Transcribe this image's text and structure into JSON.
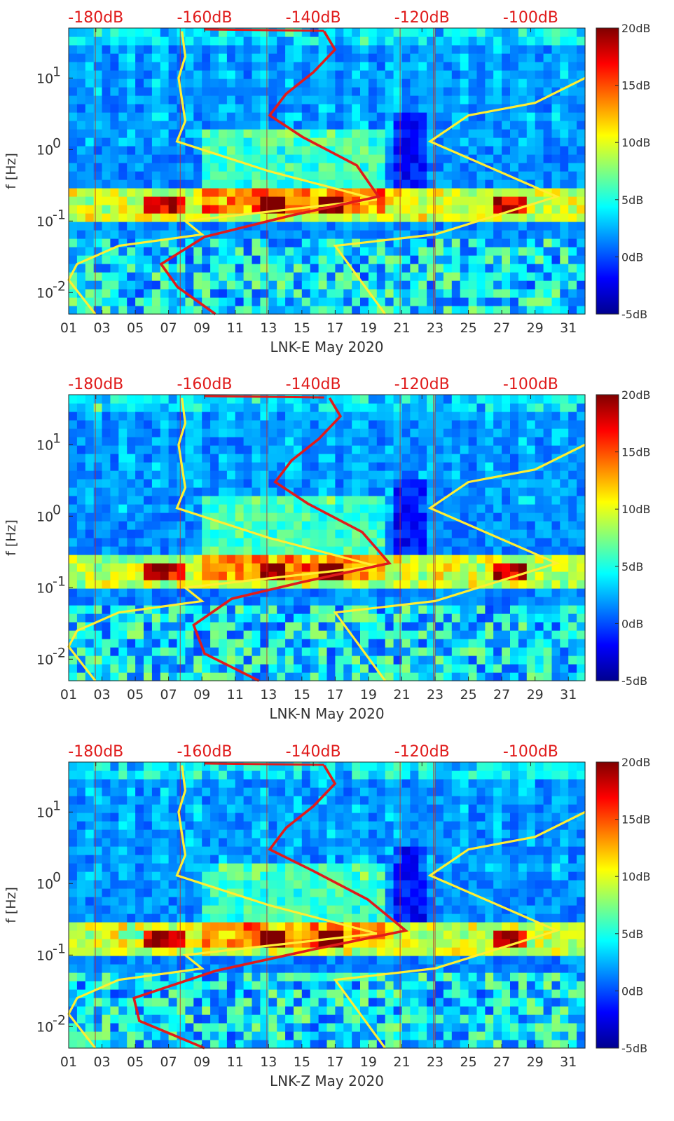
{
  "colors": {
    "psd_line": "#e01b1b",
    "model_line": "#ffee33",
    "axis_text": "#333333"
  },
  "colormap": {
    "ticks": [
      "20dB",
      "15dB",
      "10dB",
      "5dB",
      "0dB",
      "-5dB"
    ],
    "values": [
      20,
      15,
      10,
      5,
      0,
      -5
    ],
    "range": [
      -5,
      20
    ]
  },
  "chart_data": [
    {
      "type": "heatmap",
      "title": "",
      "xlabel": "LNK-E May 2020",
      "ylabel": "f [Hz]",
      "xlim": [
        1,
        32
      ],
      "ylim_hz": [
        0.005,
        50
      ],
      "xticks": [
        "01",
        "03",
        "05",
        "07",
        "09",
        "11",
        "13",
        "15",
        "17",
        "19",
        "21",
        "23",
        "25",
        "27",
        "29",
        "31"
      ],
      "yticks": [
        {
          "label": "10",
          "exp": "1",
          "value": 10
        },
        {
          "label": "10",
          "exp": "0",
          "value": 1
        },
        {
          "label": "10",
          "exp": "-1",
          "value": 0.1
        },
        {
          "label": "10",
          "exp": "-2",
          "value": 0.01
        }
      ],
      "top_ticks": [
        "-180dB",
        "-160dB",
        "-140dB",
        "-120dB",
        "-100dB"
      ],
      "top_range_db": [
        -185,
        -90
      ],
      "model_curve": [
        {
          "day": 2.6,
          "f": 0.005
        },
        {
          "day": 1.0,
          "f": 0.015
        },
        {
          "day": 1.5,
          "f": 0.025
        },
        {
          "day": 4.0,
          "f": 0.045
        },
        {
          "day": 9.0,
          "f": 0.065
        },
        {
          "day": 8.0,
          "f": 0.1
        },
        {
          "day": 19.5,
          "f": 0.2
        },
        {
          "day": 13.0,
          "f": 0.5
        },
        {
          "day": 7.5,
          "f": 1.3
        },
        {
          "day": 8.0,
          "f": 2.5
        },
        {
          "day": 7.6,
          "f": 10
        },
        {
          "day": 8.0,
          "f": 20
        },
        {
          "day": 7.8,
          "f": 45
        }
      ],
      "model_curve_right": [
        {
          "day": 20.0,
          "f": 0.005
        },
        {
          "day": 17.0,
          "f": 0.045
        },
        {
          "day": 23.0,
          "f": 0.065
        },
        {
          "day": 30.3,
          "f": 0.22
        },
        {
          "day": 22.7,
          "f": 1.3
        },
        {
          "day": 25.0,
          "f": 3.0
        },
        {
          "day": 29.0,
          "f": 4.5
        },
        {
          "day": 32.0,
          "f": 10
        }
      ],
      "psd_curve": [
        {
          "db": -158,
          "f": 0.005
        },
        {
          "db": -165,
          "f": 0.012
        },
        {
          "db": -168,
          "f": 0.025
        },
        {
          "db": -160,
          "f": 0.06
        },
        {
          "db": -144,
          "f": 0.12
        },
        {
          "db": -128,
          "f": 0.22
        },
        {
          "db": -132,
          "f": 0.6
        },
        {
          "db": -142,
          "f": 1.5
        },
        {
          "db": -148,
          "f": 3
        },
        {
          "db": -145,
          "f": 6
        },
        {
          "db": -140,
          "f": 12
        },
        {
          "db": -136,
          "f": 25
        },
        {
          "db": -138,
          "f": 45
        }
      ]
    },
    {
      "type": "heatmap",
      "title": "",
      "xlabel": "LNK-N May 2020",
      "ylabel": "f [Hz]",
      "xlim": [
        1,
        32
      ],
      "ylim_hz": [
        0.005,
        50
      ],
      "xticks": [
        "01",
        "03",
        "05",
        "07",
        "09",
        "11",
        "13",
        "15",
        "17",
        "19",
        "21",
        "23",
        "25",
        "27",
        "29",
        "31"
      ],
      "yticks": [
        {
          "label": "10",
          "exp": "1",
          "value": 10
        },
        {
          "label": "10",
          "exp": "0",
          "value": 1
        },
        {
          "label": "10",
          "exp": "-1",
          "value": 0.1
        },
        {
          "label": "10",
          "exp": "-2",
          "value": 0.01
        }
      ],
      "top_ticks": [
        "-180dB",
        "-160dB",
        "-140dB",
        "-120dB",
        "-100dB"
      ],
      "top_range_db": [
        -185,
        -90
      ],
      "model_curve": [
        {
          "day": 2.6,
          "f": 0.005
        },
        {
          "day": 1.0,
          "f": 0.015
        },
        {
          "day": 1.5,
          "f": 0.025
        },
        {
          "day": 4.0,
          "f": 0.045
        },
        {
          "day": 9.0,
          "f": 0.065
        },
        {
          "day": 8.0,
          "f": 0.1
        },
        {
          "day": 19.5,
          "f": 0.2
        },
        {
          "day": 13.0,
          "f": 0.5
        },
        {
          "day": 7.5,
          "f": 1.3
        },
        {
          "day": 8.0,
          "f": 2.5
        },
        {
          "day": 7.6,
          "f": 10
        },
        {
          "day": 8.0,
          "f": 20
        },
        {
          "day": 7.8,
          "f": 45
        }
      ],
      "model_curve_right": [
        {
          "day": 20.0,
          "f": 0.005
        },
        {
          "day": 17.0,
          "f": 0.045
        },
        {
          "day": 23.0,
          "f": 0.065
        },
        {
          "day": 30.3,
          "f": 0.22
        },
        {
          "day": 22.7,
          "f": 1.3
        },
        {
          "day": 25.0,
          "f": 3.0
        },
        {
          "day": 29.0,
          "f": 4.5
        },
        {
          "day": 32.0,
          "f": 10
        }
      ],
      "psd_curve": [
        {
          "db": -150,
          "f": 0.005
        },
        {
          "db": -160,
          "f": 0.012
        },
        {
          "db": -162,
          "f": 0.03
        },
        {
          "db": -155,
          "f": 0.07
        },
        {
          "db": -142,
          "f": 0.12
        },
        {
          "db": -126,
          "f": 0.22
        },
        {
          "db": -131,
          "f": 0.6
        },
        {
          "db": -141,
          "f": 1.5
        },
        {
          "db": -147,
          "f": 3
        },
        {
          "db": -144,
          "f": 6
        },
        {
          "db": -139,
          "f": 12
        },
        {
          "db": -135,
          "f": 25
        },
        {
          "db": -137,
          "f": 45
        }
      ]
    },
    {
      "type": "heatmap",
      "title": "",
      "xlabel": "LNK-Z May 2020",
      "ylabel": "f [Hz]",
      "xlim": [
        1,
        32
      ],
      "ylim_hz": [
        0.005,
        50
      ],
      "xticks": [
        "01",
        "03",
        "05",
        "07",
        "09",
        "11",
        "13",
        "15",
        "17",
        "19",
        "21",
        "23",
        "25",
        "27",
        "29",
        "31"
      ],
      "yticks": [
        {
          "label": "10",
          "exp": "1",
          "value": 10
        },
        {
          "label": "10",
          "exp": "0",
          "value": 1
        },
        {
          "label": "10",
          "exp": "-1",
          "value": 0.1
        },
        {
          "label": "10",
          "exp": "-2",
          "value": 0.01
        }
      ],
      "top_ticks": [
        "-180dB",
        "-160dB",
        "-140dB",
        "-120dB",
        "-100dB"
      ],
      "top_range_db": [
        -185,
        -90
      ],
      "model_curve": [
        {
          "day": 2.6,
          "f": 0.005
        },
        {
          "day": 1.0,
          "f": 0.015
        },
        {
          "day": 1.5,
          "f": 0.025
        },
        {
          "day": 4.0,
          "f": 0.045
        },
        {
          "day": 9.0,
          "f": 0.065
        },
        {
          "day": 8.0,
          "f": 0.1
        },
        {
          "day": 19.5,
          "f": 0.2
        },
        {
          "day": 13.0,
          "f": 0.5
        },
        {
          "day": 7.5,
          "f": 1.3
        },
        {
          "day": 8.0,
          "f": 2.5
        },
        {
          "day": 7.6,
          "f": 10
        },
        {
          "day": 8.0,
          "f": 20
        },
        {
          "day": 7.8,
          "f": 45
        }
      ],
      "model_curve_right": [
        {
          "day": 20.0,
          "f": 0.005
        },
        {
          "day": 17.0,
          "f": 0.045
        },
        {
          "day": 23.0,
          "f": 0.065
        },
        {
          "day": 30.3,
          "f": 0.22
        },
        {
          "day": 22.7,
          "f": 1.3
        },
        {
          "day": 25.0,
          "f": 3.0
        },
        {
          "day": 29.0,
          "f": 4.5
        },
        {
          "day": 32.0,
          "f": 10
        }
      ],
      "psd_curve": [
        {
          "db": -160,
          "f": 0.005
        },
        {
          "db": -172,
          "f": 0.012
        },
        {
          "db": -173,
          "f": 0.025
        },
        {
          "db": -158,
          "f": 0.06
        },
        {
          "db": -140,
          "f": 0.12
        },
        {
          "db": -123,
          "f": 0.22
        },
        {
          "db": -130,
          "f": 0.6
        },
        {
          "db": -140,
          "f": 1.5
        },
        {
          "db": -148,
          "f": 3
        },
        {
          "db": -145,
          "f": 6
        },
        {
          "db": -140,
          "f": 12
        },
        {
          "db": -136,
          "f": 25
        },
        {
          "db": -138,
          "f": 45
        }
      ]
    }
  ]
}
